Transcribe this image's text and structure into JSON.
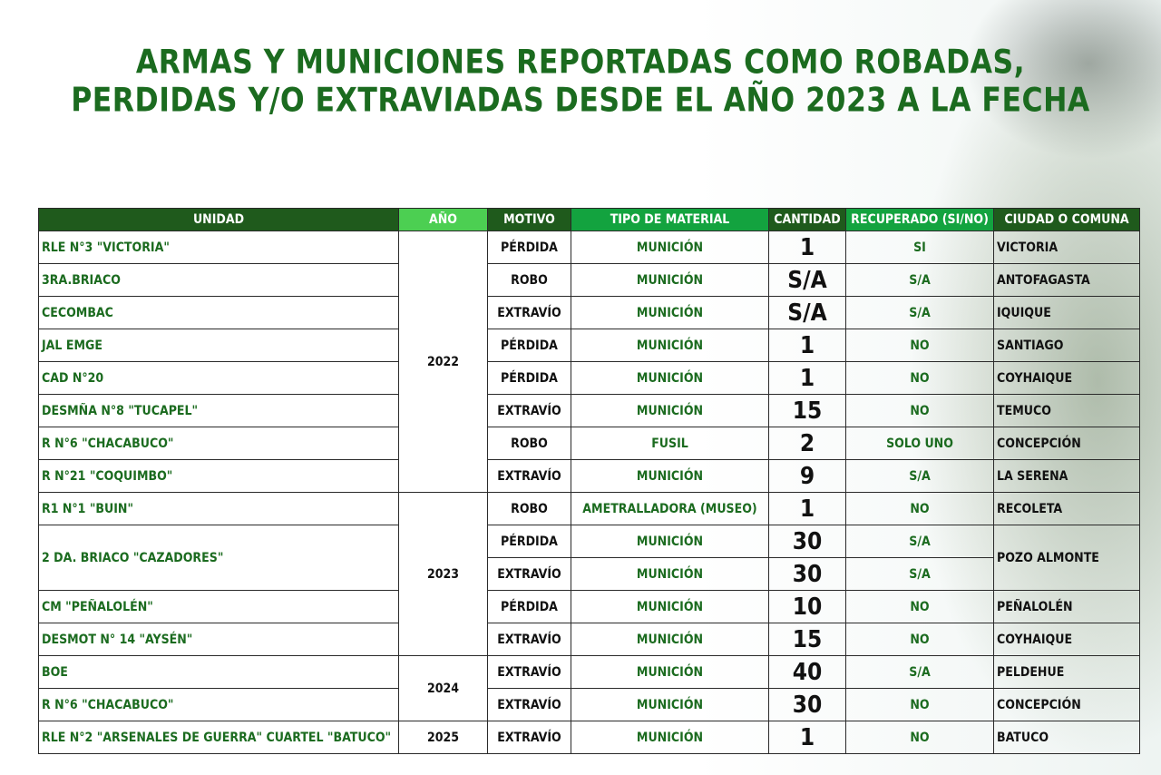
{
  "title": {
    "line1": "ARMAS Y MUNICIONES REPORTADAS COMO ROBADAS,",
    "line2": "PERDIDAS Y/O EXTRAVIADAS DESDE EL AÑO 2023 A LA FECHA"
  },
  "colors": {
    "title_green": "#1b6b1f",
    "header_dark": "#1f5a1c",
    "header_light": "#4ccf52",
    "header_mid": "#13a33f"
  },
  "table": {
    "headers": [
      "UNIDAD",
      "AÑO",
      "MOTIVO",
      "TIPO DE MATERIAL",
      "CANTIDAD",
      "RECUPERADO (SI/NO)",
      "CIUDAD O COMUNA"
    ],
    "rows": [
      {
        "unidad": "RLE N°3 \"VICTORIA\"",
        "anio": "2022",
        "motivo": "PÉRDIDA",
        "material": "MUNICIÓN",
        "cantidad": "1",
        "recuperado": "SI",
        "ciudad": "VICTORIA"
      },
      {
        "unidad": "3RA.BRIACO",
        "motivo": "ROBO",
        "material": "MUNICIÓN",
        "cantidad": "S/A",
        "recuperado": "S/A",
        "ciudad": "ANTOFAGASTA"
      },
      {
        "unidad": "CECOMBAC",
        "motivo": "EXTRAVÍO",
        "material": "MUNICIÓN",
        "cantidad": "S/A",
        "recuperado": "S/A",
        "ciudad": "IQUIQUE"
      },
      {
        "unidad": "JAL EMGE",
        "motivo": "PÉRDIDA",
        "material": "MUNICIÓN",
        "cantidad": "1",
        "recuperado": "NO",
        "ciudad": "SANTIAGO"
      },
      {
        "unidad": "CAD N°20",
        "motivo": "PÉRDIDA",
        "material": "MUNICIÓN",
        "cantidad": "1",
        "recuperado": "NO",
        "ciudad": "COYHAIQUE"
      },
      {
        "unidad": "DESMÑA N°8 \"TUCAPEL\"",
        "motivo": "EXTRAVÍO",
        "material": "MUNICIÓN",
        "cantidad": "15",
        "recuperado": "NO",
        "ciudad": "TEMUCO"
      },
      {
        "unidad": "R N°6 \"CHACABUCO\"",
        "motivo": "ROBO",
        "material": "FUSIL",
        "cantidad": "2",
        "recuperado": "SOLO UNO",
        "ciudad": "CONCEPCIÓN"
      },
      {
        "unidad": "R N°21 \"COQUIMBO\"",
        "motivo": "EXTRAVÍO",
        "material": "MUNICIÓN",
        "cantidad": "9",
        "recuperado": "S/A",
        "ciudad": "LA SERENA"
      },
      {
        "unidad": "R1 N°1 \"BUIN\"",
        "anio": "2023",
        "motivo": "ROBO",
        "material": "AMETRALLADORA (MUSEO)",
        "cantidad": "1",
        "recuperado": "NO",
        "ciudad": "RECOLETA"
      },
      {
        "unidad": "2 DA. BRIACO \"CAZADORES\"",
        "motivo": "PÉRDIDA",
        "material": "MUNICIÓN",
        "cantidad": "30",
        "recuperado": "S/A",
        "ciudad": "POZO ALMONTE"
      },
      {
        "motivo": "EXTRAVÍO",
        "material": "MUNICIÓN",
        "cantidad": "30",
        "recuperado": "S/A"
      },
      {
        "unidad": "CM \"PEÑALOLÉN\"",
        "motivo": "PÉRDIDA",
        "material": "MUNICIÓN",
        "cantidad": "10",
        "recuperado": "NO",
        "ciudad": "PEÑALOLÉN"
      },
      {
        "unidad": "DESMOT N° 14 \"AYSÉN\"",
        "motivo": "EXTRAVÍO",
        "material": "MUNICIÓN",
        "cantidad": "15",
        "recuperado": "NO",
        "ciudad": "COYHAIQUE"
      },
      {
        "unidad": "BOE",
        "anio": "2024",
        "motivo": "EXTRAVÍO",
        "material": "MUNICIÓN",
        "cantidad": "40",
        "recuperado": "S/A",
        "ciudad": "PELDEHUE"
      },
      {
        "unidad": "R N°6 \"CHACABUCO\"",
        "motivo": "EXTRAVÍO",
        "material": "MUNICIÓN",
        "cantidad": "30",
        "recuperado": "NO",
        "ciudad": "CONCEPCIÓN"
      },
      {
        "unidad": "RLE N°2 \"ARSENALES DE GUERRA\" CUARTEL \"BATUCO\"",
        "anio": "2025",
        "motivo": "EXTRAVÍO",
        "material": "MUNICIÓN",
        "cantidad": "1",
        "recuperado": "NO",
        "ciudad": "BATUCO"
      }
    ]
  }
}
